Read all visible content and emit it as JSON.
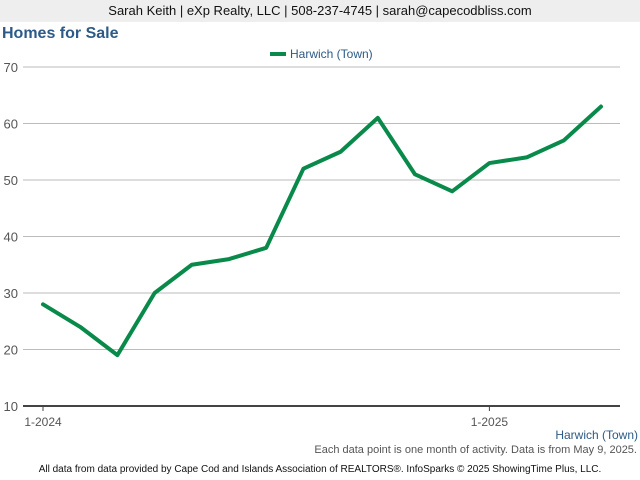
{
  "header": {
    "contact_line": "Sarah Keith | eXp Realty, LLC | 508-237-4745 | sarah@capecodbliss.com"
  },
  "chart_data": {
    "type": "line",
    "title": "Homes for Sale",
    "x": [
      "1-2024",
      "2-2024",
      "3-2024",
      "4-2024",
      "5-2024",
      "6-2024",
      "7-2024",
      "8-2024",
      "9-2024",
      "10-2024",
      "11-2024",
      "12-2024",
      "1-2025",
      "2-2025",
      "3-2025",
      "4-2025"
    ],
    "x_tick_labels": [
      {
        "index": 0,
        "label": "1-2024"
      },
      {
        "index": 12,
        "label": "1-2025"
      }
    ],
    "series": [
      {
        "name": "Harwich (Town)",
        "color": "#098a4a",
        "values": [
          28,
          24,
          19,
          30,
          35,
          36,
          38,
          52,
          55,
          61,
          51,
          48,
          53,
          54,
          57,
          63
        ]
      }
    ],
    "ylim": [
      10,
      70
    ],
    "yticks": [
      10,
      20,
      30,
      40,
      50,
      60,
      70
    ],
    "grid": true,
    "legend_position": "top-center",
    "area_label": "Harwich (Town)"
  },
  "footnote": "Each data point is one month of activity. Data is from May 9, 2025.",
  "footer": "All data from data provided by Cape Cod and Islands Association of REALTORS®. InfoSparks © 2025 ShowingTime Plus, LLC."
}
